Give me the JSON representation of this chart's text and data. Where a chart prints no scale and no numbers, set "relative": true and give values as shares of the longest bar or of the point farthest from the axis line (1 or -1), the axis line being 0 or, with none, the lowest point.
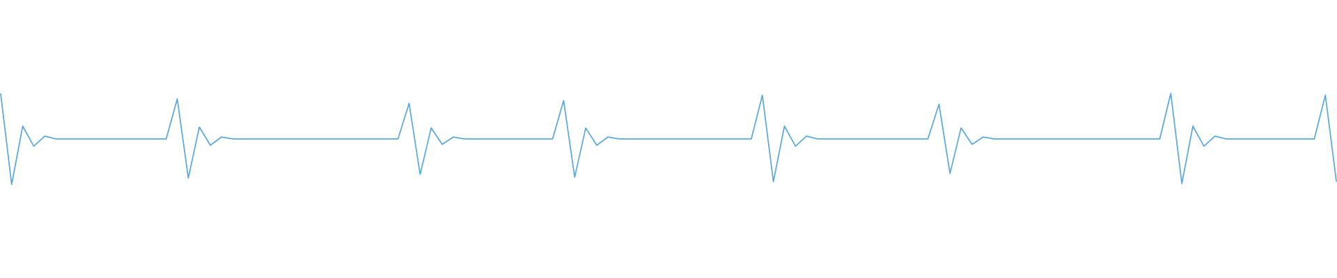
{
  "chart_data": {
    "type": "line",
    "relative": true,
    "color": "#5aa9e0",
    "categories": [
      null,
      null,
      null,
      null,
      null,
      null,
      null,
      null,
      null,
      null,
      null,
      null,
      null,
      null,
      null,
      null,
      null,
      null,
      null,
      null,
      null,
      null,
      null,
      null,
      null,
      null,
      null,
      null,
      null,
      null,
      null,
      null,
      null,
      null,
      null,
      null,
      null,
      null,
      null,
      null,
      null,
      null,
      null,
      null,
      null,
      null,
      null,
      null,
      null,
      null,
      null,
      null,
      null,
      null,
      null,
      null,
      null,
      null,
      null,
      null,
      null,
      null,
      null,
      null,
      null,
      null,
      null,
      null,
      null,
      null,
      null,
      null,
      null,
      null,
      null,
      null,
      null,
      null,
      null,
      null,
      null,
      null,
      null,
      null,
      null,
      null,
      null,
      null,
      null,
      null,
      null,
      null,
      null,
      null,
      null,
      null,
      null,
      null,
      null,
      null,
      null,
      null,
      null,
      null,
      null,
      null,
      null,
      null,
      null,
      null,
      null,
      null,
      null,
      null,
      null,
      null,
      null,
      null,
      null,
      null,
      null,
      null
    ],
    "values": [
      1.0,
      0,
      0.64,
      0.42,
      0.53,
      0.5,
      0.5,
      0.5,
      0.5,
      0.5,
      0.5,
      0.5,
      0.5,
      0.5,
      0.5,
      0.5,
      0.94,
      0.07,
      0.63,
      0.43,
      0.52,
      0.5,
      0.5,
      0.5,
      0.5,
      0.5,
      0.5,
      0.5,
      0.5,
      0.5,
      0.5,
      0.5,
      0.5,
      0.5,
      0.5,
      0.5,
      0.5,
      0.89,
      0.11,
      0.62,
      0.44,
      0.52,
      0.5,
      0.5,
      0.5,
      0.5,
      0.5,
      0.5,
      0.5,
      0.5,
      0.5,
      0.92,
      0.08,
      0.62,
      0.43,
      0.52,
      0.5,
      0.5,
      0.5,
      0.5,
      0.5,
      0.5,
      0.5,
      0.5,
      0.5,
      0.5,
      0.5,
      0.5,
      0.5,
      0.98,
      0.03,
      0.64,
      0.42,
      0.53,
      0.5,
      0.5,
      0.5,
      0.5,
      0.5,
      0.5,
      0.5,
      0.5,
      0.5,
      0.5,
      0.5,
      0.88,
      0.12,
      0.62,
      0.44,
      0.52,
      0.5,
      0.5,
      0.5,
      0.5,
      0.5,
      0.5,
      0.5,
      0.5,
      0.5,
      0.5,
      0.5,
      0.5,
      0.5,
      0.5,
      0.5,
      0.5,
      1.0,
      0.01,
      0.64,
      0.42,
      0.53,
      0.5,
      0.5,
      0.5,
      0.5,
      0.5,
      0.5,
      0.5,
      0.5,
      0.5,
      0.98,
      0.03
    ]
  }
}
